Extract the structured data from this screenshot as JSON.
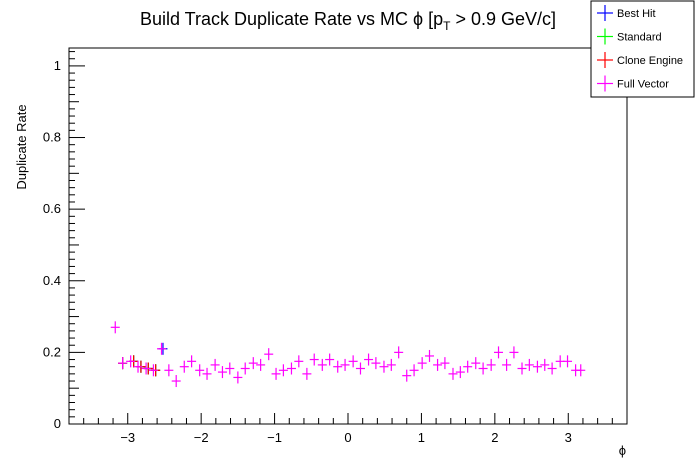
{
  "chart_data": {
    "type": "scatter",
    "title_main": "Build Track Duplicate Rate vs MC ϕ [p",
    "title_sub": "T",
    "title_tail": " > 0.9 GeV/c]",
    "xlabel": "ϕ",
    "ylabel": "Duplicate Rate",
    "xlim": [
      -3.8,
      3.8
    ],
    "ylim": [
      0,
      1.05
    ],
    "xticks": [
      -3,
      -2,
      -1,
      0,
      1,
      2,
      3
    ],
    "xtick_labels": [
      "−3",
      "−2",
      "−1",
      "0",
      "1",
      "2",
      "3"
    ],
    "yticks": [
      0,
      0.2,
      0.4,
      0.6,
      0.8,
      1
    ],
    "ytick_labels": [
      "0",
      "0.2",
      "0.4",
      "0.6",
      "0.8",
      "1"
    ],
    "legend_position": "top-right",
    "series": [
      {
        "name": "Best Hit",
        "color": "#0000ff",
        "x": [
          -3.07,
          -2.92,
          -2.82,
          -2.72,
          -2.62,
          -2.52
        ],
        "y": [
          0.17,
          0.175,
          0.16,
          0.155,
          0.15,
          0.21
        ]
      },
      {
        "name": "Standard",
        "color": "#00ff00",
        "x": [
          -3.07,
          -2.92,
          -2.82,
          -2.72,
          -2.62
        ],
        "y": [
          0.17,
          0.175,
          0.16,
          0.155,
          0.15
        ]
      },
      {
        "name": "Clone Engine",
        "color": "#ff0000",
        "x": [
          -3.07,
          -2.92,
          -2.82,
          -2.72,
          -2.62
        ],
        "y": [
          0.17,
          0.175,
          0.16,
          0.155,
          0.15
        ]
      },
      {
        "name": "Full Vector",
        "color": "#ff00ff",
        "x": [
          -3.17,
          -3.07,
          -2.96,
          -2.86,
          -2.75,
          -2.65,
          -2.54,
          -2.44,
          -2.34,
          -2.23,
          -2.13,
          -2.02,
          -1.92,
          -1.81,
          -1.71,
          -1.61,
          -1.5,
          -1.4,
          -1.29,
          -1.19,
          -1.08,
          -0.98,
          -0.88,
          -0.77,
          -0.67,
          -0.56,
          -0.46,
          -0.35,
          -0.25,
          -0.14,
          -0.04,
          0.07,
          0.17,
          0.28,
          0.38,
          0.49,
          0.59,
          0.69,
          0.8,
          0.9,
          1.01,
          1.11,
          1.22,
          1.32,
          1.43,
          1.53,
          1.63,
          1.74,
          1.84,
          1.95,
          2.05,
          2.16,
          2.26,
          2.37,
          2.47,
          2.58,
          2.68,
          2.78,
          2.89,
          2.99,
          3.1,
          3.17
        ],
        "y": [
          0.27,
          0.17,
          0.175,
          0.16,
          0.155,
          0.15,
          0.21,
          0.15,
          0.12,
          0.16,
          0.175,
          0.15,
          0.14,
          0.165,
          0.145,
          0.155,
          0.13,
          0.155,
          0.17,
          0.165,
          0.195,
          0.14,
          0.15,
          0.155,
          0.175,
          0.14,
          0.18,
          0.165,
          0.18,
          0.16,
          0.165,
          0.175,
          0.155,
          0.18,
          0.17,
          0.16,
          0.165,
          0.2,
          0.135,
          0.15,
          0.17,
          0.19,
          0.165,
          0.17,
          0.14,
          0.145,
          0.16,
          0.17,
          0.155,
          0.165,
          0.2,
          0.165,
          0.2,
          0.155,
          0.165,
          0.16,
          0.165,
          0.155,
          0.175,
          0.175,
          0.15,
          0.15
        ]
      }
    ]
  }
}
